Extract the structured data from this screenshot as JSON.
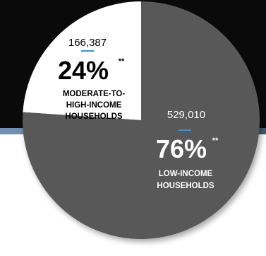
{
  "chart_data": {
    "type": "pie",
    "title": "",
    "slices": [
      {
        "label_lines": [
          "MODERATE-TO-",
          "HIGH-INCOME",
          "HOUSEHOLDS"
        ],
        "count": "166,387",
        "percent_text": "24%",
        "footnote": "**",
        "value": 166387,
        "percent": 24,
        "color": "#ffffff",
        "text_color": "#000000"
      },
      {
        "label_lines": [
          "LOW-INCOME",
          "HOUSEHOLDS"
        ],
        "count": "529,010",
        "percent_text": "76%",
        "footnote": "**",
        "value": 529010,
        "percent": 76,
        "color": "#595959",
        "text_color": "#ffffff"
      }
    ],
    "accent_color": "#3e8ed0",
    "background_colors": [
      "#0a0a0a",
      "#445a70",
      "#ffffff"
    ]
  }
}
